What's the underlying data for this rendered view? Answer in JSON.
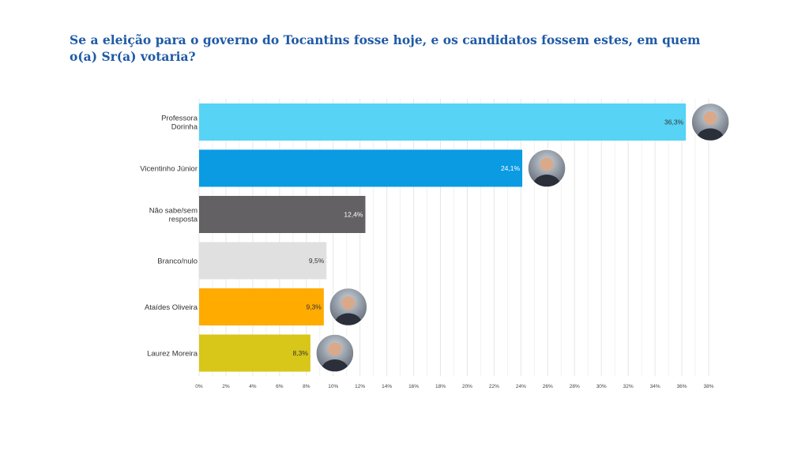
{
  "chart_data": {
    "type": "bar",
    "orientation": "horizontal",
    "title": "Se a eleição para o governo do Tocantins fosse hoje, e os candidatos fossem estes, em quem o(a) Sr(a) votaria?",
    "categories": [
      [
        "Professora",
        "Dorinha"
      ],
      [
        "Vicentinho Júnior"
      ],
      [
        "Não sabe/sem",
        "resposta"
      ],
      [
        "Branco/nulo"
      ],
      [
        "Ataídes Oliveira"
      ],
      [
        "Laurez Moreira"
      ]
    ],
    "values": [
      36.3,
      24.1,
      12.4,
      9.5,
      9.3,
      8.3
    ],
    "value_labels": [
      "36,3%",
      "24,1%",
      "12,4%",
      "9,5%",
      "9,3%",
      "8,3%"
    ],
    "colors": [
      "#56d3f5",
      "#0a9be3",
      "#636163",
      "#e0e0e0",
      "#ffab00",
      "#d8c618"
    ],
    "label_colors": [
      "#333333",
      "#ffffff",
      "#ffffff",
      "#333333",
      "#333333",
      "#333333"
    ],
    "photos": [
      true,
      true,
      false,
      false,
      true,
      true
    ],
    "xlim": [
      0,
      38
    ],
    "x_ticks": [
      0,
      2,
      4,
      6,
      8,
      10,
      12,
      14,
      16,
      18,
      20,
      22,
      24,
      26,
      28,
      30,
      32,
      34,
      36,
      38
    ],
    "x_tick_labels": [
      "0%",
      "2%",
      "4%",
      "6%",
      "8%",
      "10%",
      "12%",
      "14%",
      "16%",
      "18%",
      "20%",
      "22%",
      "24%",
      "26%",
      "28%",
      "30%",
      "32%",
      "34%",
      "36%",
      "38%"
    ],
    "grid": true,
    "legend": "none"
  }
}
